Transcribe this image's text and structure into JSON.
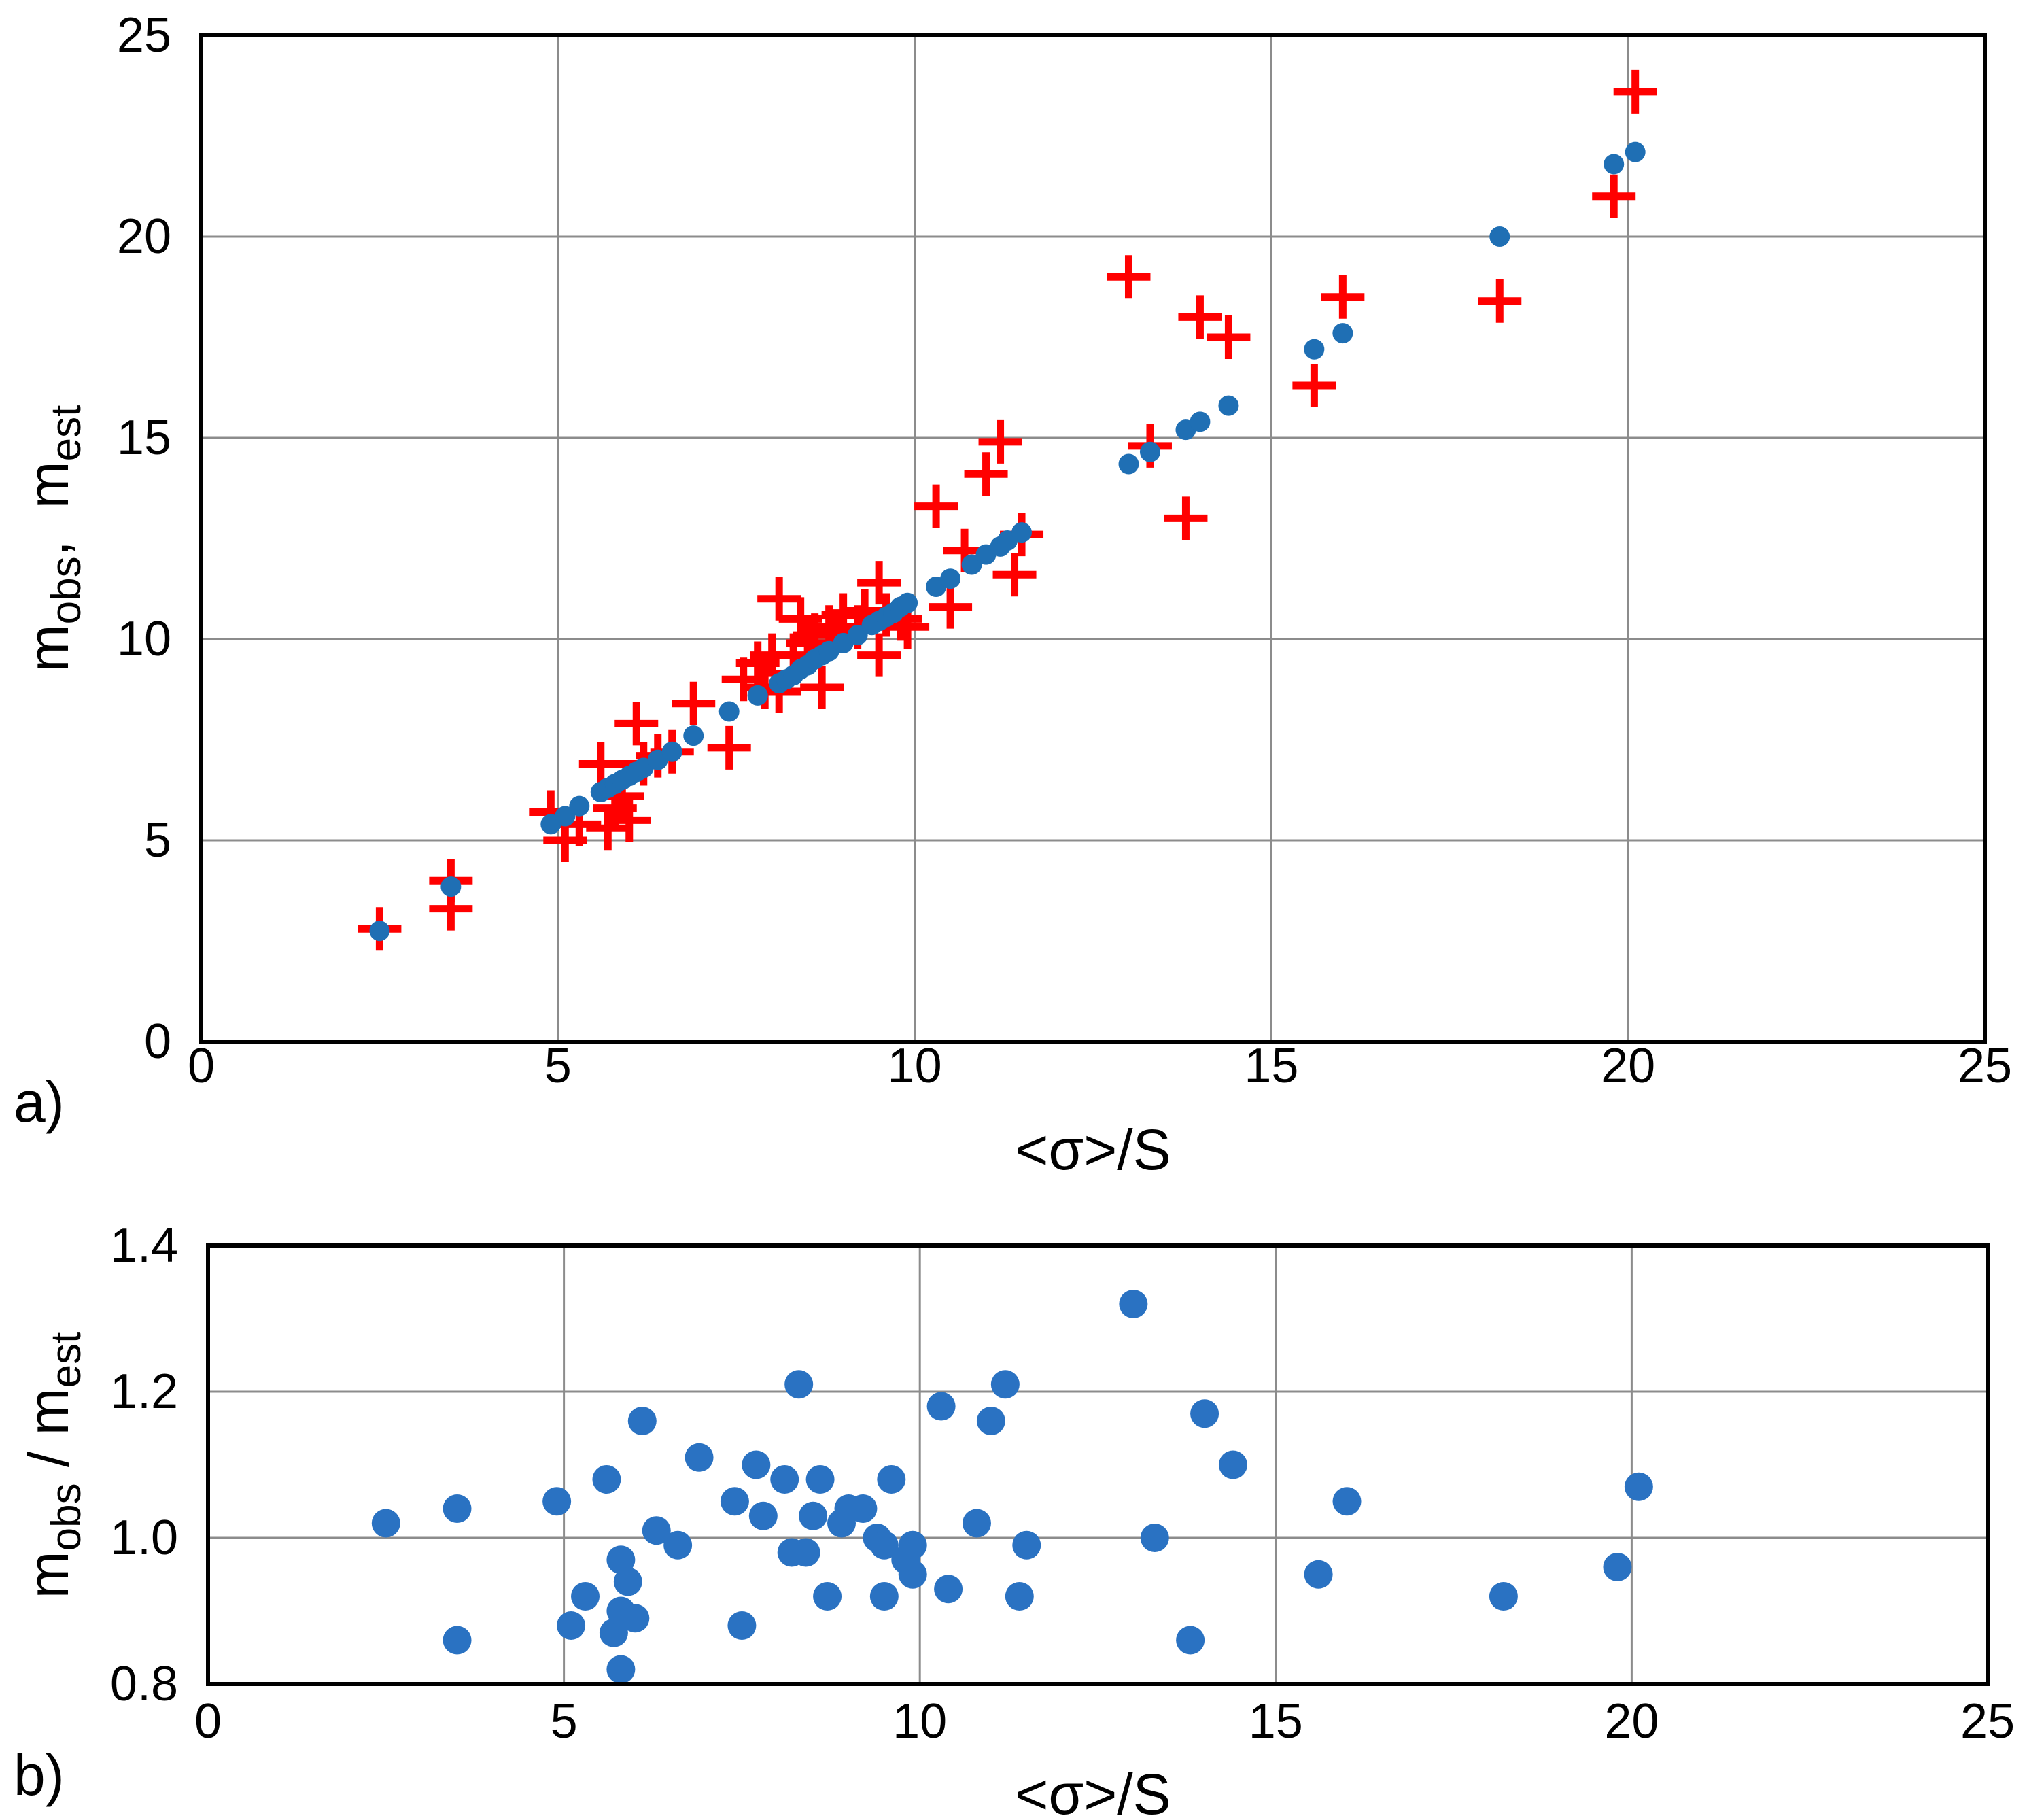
{
  "chart_data": [
    {
      "panel_label": "a)",
      "type": "scatter",
      "xlabel": "<σ>/S",
      "ylabel_main": "m",
      "ylabel_sub1": "obs",
      "ylabel_sep": ",  m",
      "ylabel_sub2": "est",
      "xlim": [
        0,
        25
      ],
      "ylim": [
        0,
        25
      ],
      "xticks": [
        "0",
        "5",
        "10",
        "15",
        "20",
        "25"
      ],
      "yticks": [
        "0",
        "5",
        "10",
        "15",
        "20",
        "25"
      ],
      "grid": true,
      "colors": {
        "obs": "#ff0000",
        "est": "#1f6fb4"
      },
      "series": [
        {
          "name": "m_obs",
          "marker": "plus",
          "points": [
            [
              2.5,
              2.8
            ],
            [
              3.5,
              4.0
            ],
            [
              3.5,
              3.3
            ],
            [
              4.9,
              5.7
            ],
            [
              5.1,
              5.0
            ],
            [
              5.3,
              5.4
            ],
            [
              5.6,
              6.9
            ],
            [
              5.7,
              5.3
            ],
            [
              5.8,
              5.8
            ],
            [
              5.9,
              6.1
            ],
            [
              6.0,
              5.5
            ],
            [
              6.1,
              7.9
            ],
            [
              6.2,
              6.9
            ],
            [
              6.4,
              7.1
            ],
            [
              6.6,
              7.2
            ],
            [
              6.9,
              8.4
            ],
            [
              7.4,
              7.3
            ],
            [
              7.6,
              9.0
            ],
            [
              7.8,
              9.4
            ],
            [
              7.9,
              8.8
            ],
            [
              8.0,
              9.6
            ],
            [
              8.1,
              8.7
            ],
            [
              8.1,
              11.0
            ],
            [
              8.3,
              9.6
            ],
            [
              8.4,
              10.5
            ],
            [
              8.5,
              9.9
            ],
            [
              8.6,
              10.1
            ],
            [
              8.7,
              8.8
            ],
            [
              8.8,
              10.3
            ],
            [
              8.9,
              10.2
            ],
            [
              9.0,
              10.6
            ],
            [
              9.2,
              10.3
            ],
            [
              9.3,
              10.7
            ],
            [
              9.5,
              9.6
            ],
            [
              9.5,
              11.4
            ],
            [
              9.6,
              10.6
            ],
            [
              9.8,
              10.5
            ],
            [
              9.9,
              10.3
            ],
            [
              10.3,
              13.3
            ],
            [
              10.5,
              10.8
            ],
            [
              10.7,
              12.2
            ],
            [
              11.0,
              14.1
            ],
            [
              11.2,
              14.9
            ],
            [
              11.4,
              11.6
            ],
            [
              11.5,
              12.6
            ],
            [
              13.0,
              19.0
            ],
            [
              13.3,
              14.8
            ],
            [
              13.8,
              13.0
            ],
            [
              14.0,
              18.0
            ],
            [
              14.4,
              17.5
            ],
            [
              15.6,
              16.3
            ],
            [
              16.0,
              18.5
            ],
            [
              18.2,
              18.4
            ],
            [
              19.8,
              21.0
            ],
            [
              20.1,
              23.6
            ]
          ]
        },
        {
          "name": "m_est",
          "marker": "circle",
          "points": [
            [
              2.5,
              2.75
            ],
            [
              3.5,
              3.85
            ],
            [
              4.9,
              5.4
            ],
            [
              5.1,
              5.6
            ],
            [
              5.3,
              5.85
            ],
            [
              5.6,
              6.2
            ],
            [
              5.7,
              6.3
            ],
            [
              5.8,
              6.4
            ],
            [
              5.9,
              6.5
            ],
            [
              6.0,
              6.6
            ],
            [
              6.1,
              6.7
            ],
            [
              6.2,
              6.8
            ],
            [
              6.4,
              7.0
            ],
            [
              6.6,
              7.2
            ],
            [
              6.9,
              7.6
            ],
            [
              7.4,
              8.2
            ],
            [
              7.8,
              8.6
            ],
            [
              8.1,
              8.9
            ],
            [
              8.2,
              9.0
            ],
            [
              8.3,
              9.1
            ],
            [
              8.4,
              9.25
            ],
            [
              8.5,
              9.35
            ],
            [
              8.6,
              9.5
            ],
            [
              8.7,
              9.6
            ],
            [
              8.8,
              9.7
            ],
            [
              9.0,
              9.9
            ],
            [
              9.2,
              10.1
            ],
            [
              9.4,
              10.35
            ],
            [
              9.5,
              10.45
            ],
            [
              9.6,
              10.55
            ],
            [
              9.7,
              10.65
            ],
            [
              9.8,
              10.8
            ],
            [
              9.9,
              10.9
            ],
            [
              10.3,
              11.3
            ],
            [
              10.5,
              11.5
            ],
            [
              10.8,
              11.85
            ],
            [
              11.0,
              12.1
            ],
            [
              11.2,
              12.3
            ],
            [
              11.3,
              12.45
            ],
            [
              11.5,
              12.65
            ],
            [
              13.0,
              14.35
            ],
            [
              13.3,
              14.65
            ],
            [
              13.8,
              15.2
            ],
            [
              14.0,
              15.4
            ],
            [
              14.4,
              15.8
            ],
            [
              15.6,
              17.2
            ],
            [
              16.0,
              17.6
            ],
            [
              18.2,
              20.0
            ],
            [
              19.8,
              21.8
            ],
            [
              20.1,
              22.1
            ]
          ]
        }
      ]
    },
    {
      "panel_label": "b)",
      "type": "scatter",
      "xlabel": "<σ>/S",
      "ylabel_main1": "m",
      "ylabel_sub1": "obs",
      "ylabel_sep": " / m",
      "ylabel_sub2": "est",
      "xlim": [
        0,
        25
      ],
      "ylim": [
        0.8,
        1.4
      ],
      "xticks": [
        "0",
        "5",
        "10",
        "15",
        "20",
        "25"
      ],
      "yticks": [
        "0.8",
        "1.0",
        "1.2",
        "1.4"
      ],
      "grid": true,
      "colors": {
        "ratio": "#2a72c2"
      },
      "series": [
        {
          "name": "m_obs / m_est",
          "marker": "circle",
          "points": [
            [
              2.5,
              1.02
            ],
            [
              3.5,
              0.86
            ],
            [
              3.5,
              1.04
            ],
            [
              4.9,
              1.05
            ],
            [
              5.1,
              0.88
            ],
            [
              5.3,
              0.92
            ],
            [
              5.6,
              1.08
            ],
            [
              5.7,
              0.87
            ],
            [
              5.8,
              0.82
            ],
            [
              5.8,
              0.97
            ],
            [
              5.8,
              0.9
            ],
            [
              5.9,
              0.94
            ],
            [
              6.0,
              0.89
            ],
            [
              6.1,
              1.16
            ],
            [
              6.3,
              1.01
            ],
            [
              6.6,
              0.99
            ],
            [
              6.9,
              1.11
            ],
            [
              7.4,
              1.05
            ],
            [
              7.5,
              0.88
            ],
            [
              7.7,
              1.1
            ],
            [
              7.8,
              1.03
            ],
            [
              8.1,
              1.08
            ],
            [
              8.2,
              0.98
            ],
            [
              8.3,
              1.21
            ],
            [
              8.4,
              0.98
            ],
            [
              8.5,
              1.03
            ],
            [
              8.6,
              1.08
            ],
            [
              8.7,
              0.92
            ],
            [
              8.9,
              1.02
            ],
            [
              9.0,
              1.04
            ],
            [
              9.2,
              1.04
            ],
            [
              9.4,
              1.0
            ],
            [
              9.5,
              0.99
            ],
            [
              9.5,
              0.92
            ],
            [
              9.6,
              1.08
            ],
            [
              9.8,
              0.97
            ],
            [
              9.9,
              0.99
            ],
            [
              9.9,
              0.95
            ],
            [
              10.3,
              1.18
            ],
            [
              10.4,
              0.93
            ],
            [
              10.8,
              1.02
            ],
            [
              11.0,
              1.16
            ],
            [
              11.2,
              1.21
            ],
            [
              11.4,
              0.92
            ],
            [
              11.5,
              0.99
            ],
            [
              13.0,
              1.32
            ],
            [
              13.3,
              1.0
            ],
            [
              13.8,
              0.86
            ],
            [
              14.0,
              1.17
            ],
            [
              14.4,
              1.1
            ],
            [
              15.6,
              0.95
            ],
            [
              16.0,
              1.05
            ],
            [
              18.2,
              0.92
            ],
            [
              19.8,
              0.96
            ],
            [
              20.1,
              1.07
            ]
          ]
        }
      ]
    }
  ]
}
